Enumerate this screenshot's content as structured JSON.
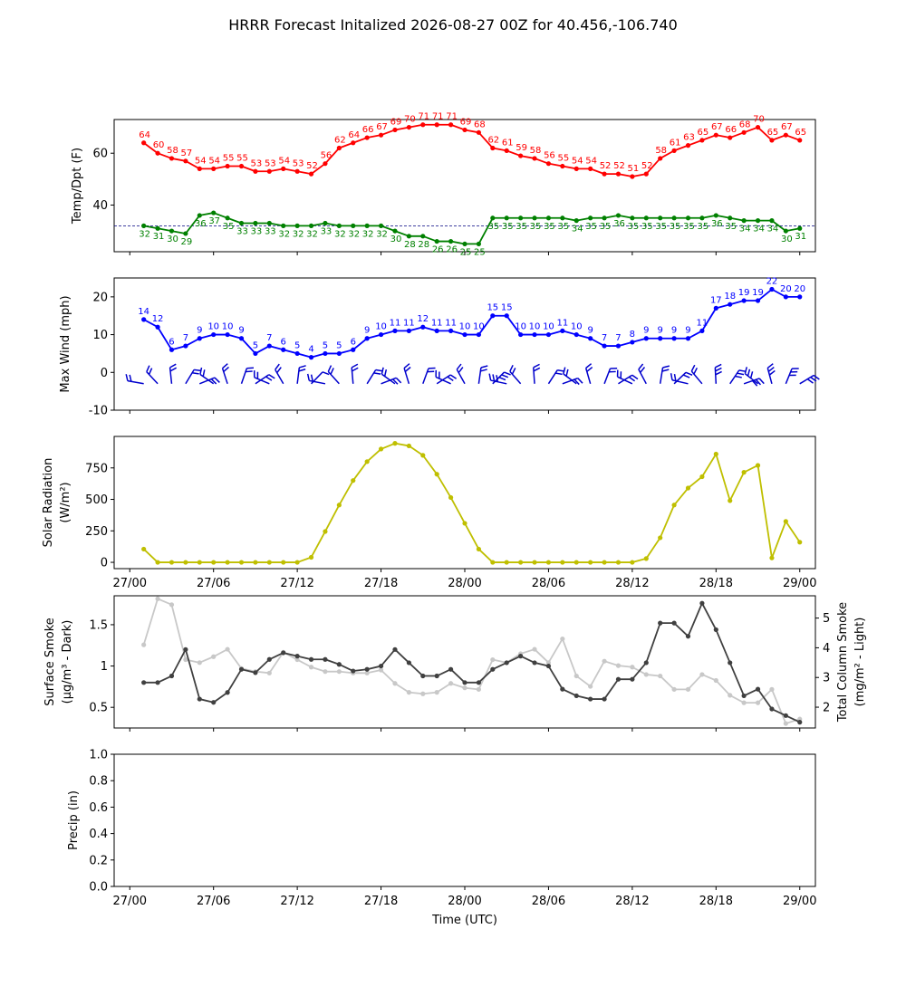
{
  "figure": {
    "title": "HRRR Forecast Initalized 2026-08-27 00Z for 40.456,-106.740",
    "xlabel": "Time (UTC)",
    "xticks": [
      {
        "hour": 0,
        "label": "27/00"
      },
      {
        "hour": 6,
        "label": "27/06"
      },
      {
        "hour": 12,
        "label": "27/12"
      },
      {
        "hour": 18,
        "label": "27/18"
      },
      {
        "hour": 24,
        "label": "28/00"
      },
      {
        "hour": 30,
        "label": "28/06"
      },
      {
        "hour": 36,
        "label": "28/12"
      },
      {
        "hour": 42,
        "label": "28/18"
      },
      {
        "hour": 48,
        "label": "29/00"
      }
    ]
  },
  "chart_data": [
    {
      "type": "line",
      "panel": "temperature",
      "ylabel": "Temp/Dpt (F)",
      "ylim": [
        22,
        73
      ],
      "yticks": [
        40,
        60
      ],
      "hours_from_2026-08-27_00Z": [
        1,
        2,
        3,
        4,
        5,
        6,
        7,
        8,
        9,
        10,
        11,
        12,
        13,
        14,
        15,
        16,
        17,
        18,
        19,
        20,
        21,
        22,
        23,
        24,
        25,
        26,
        27,
        28,
        29,
        30,
        31,
        32,
        33,
        34,
        35,
        36,
        37,
        38,
        39,
        40,
        41,
        42,
        43,
        44,
        45,
        46,
        47,
        48
      ],
      "series": [
        {
          "color": "#ff0000",
          "values": [
            64,
            60,
            58,
            57,
            54,
            54,
            55,
            55,
            53,
            53,
            54,
            53,
            52,
            56,
            62,
            64,
            66,
            67,
            69,
            70,
            71,
            71,
            71,
            69,
            68,
            62,
            61,
            59,
            58,
            56,
            55,
            54,
            54,
            52,
            52,
            51,
            52,
            58,
            61,
            63,
            65,
            67,
            66,
            68,
            70,
            65,
            67,
            65
          ]
        },
        {
          "color": "#008000",
          "values": [
            32,
            31,
            30,
            29,
            36,
            37,
            35,
            33,
            33,
            33,
            32,
            32,
            32,
            33,
            32,
            32,
            32,
            32,
            30,
            28,
            28,
            26,
            26,
            25,
            25,
            35,
            35,
            35,
            35,
            35,
            35,
            34,
            35,
            35,
            36,
            35,
            35,
            35,
            35,
            35,
            35,
            36,
            35,
            34,
            34,
            34,
            30,
            31
          ]
        }
      ],
      "reference_line": {
        "value": 32,
        "style": "dashed",
        "color": "#000080"
      }
    },
    {
      "type": "line",
      "panel": "wind",
      "ylabel": "Max Wind (mph)",
      "ylim": [
        -10,
        25
      ],
      "yticks": [
        -10,
        0,
        10,
        20
      ],
      "series": [
        {
          "color": "#0000ff",
          "values": [
            14,
            12,
            6,
            7,
            9,
            10,
            10,
            9,
            5,
            7,
            6,
            5,
            4,
            5,
            5,
            6,
            9,
            10,
            11,
            11,
            12,
            11,
            11,
            10,
            10,
            15,
            15,
            10,
            10,
            10,
            11,
            10,
            9,
            7,
            7,
            8,
            9,
            9,
            9,
            9,
            11,
            17,
            18,
            19,
            19,
            22,
            20,
            20
          ]
        }
      ],
      "wind_barbs": {
        "y": -3,
        "color": "#0000cd"
      }
    },
    {
      "type": "line",
      "panel": "solar",
      "ylabel": "Solar Radiation (W/m²)",
      "ylim": [
        -50,
        1000
      ],
      "yticks": [
        0,
        250,
        500,
        750
      ],
      "series": [
        {
          "color": "#bfbf00",
          "values": [
            105,
            0,
            0,
            0,
            0,
            0,
            0,
            0,
            0,
            0,
            0,
            0,
            40,
            245,
            455,
            650,
            800,
            900,
            945,
            925,
            850,
            700,
            515,
            310,
            105,
            0,
            0,
            0,
            0,
            0,
            0,
            0,
            0,
            0,
            0,
            0,
            30,
            195,
            455,
            590,
            680,
            860,
            490,
            715,
            770,
            35,
            325,
            160
          ]
        }
      ]
    },
    {
      "type": "line",
      "panel": "smoke",
      "ylabel": "Surface Smoke (μg/m³ - Dark)",
      "ylabel_right": "Total Column Smoke (mg/m² - Light)",
      "ylim": [
        0.25,
        1.85
      ],
      "yticks": [
        0.5,
        1.0,
        1.5
      ],
      "ylim_right": [
        1.3,
        5.75
      ],
      "yticks_right": [
        2,
        3,
        4,
        5
      ],
      "series": [
        {
          "axis": "left",
          "color": "#404040",
          "values": [
            0.8,
            0.8,
            0.88,
            1.2,
            0.6,
            0.56,
            0.68,
            0.96,
            0.92,
            1.08,
            1.16,
            1.12,
            1.08,
            1.08,
            1.02,
            0.94,
            0.96,
            1.0,
            1.2,
            1.04,
            0.88,
            0.88,
            0.96,
            0.8,
            0.8,
            0.96,
            1.04,
            1.12,
            1.04,
            1.0,
            0.72,
            0.64,
            0.6,
            0.6,
            0.84,
            0.84,
            1.04,
            1.52,
            1.52,
            1.36,
            1.76,
            1.44,
            1.04,
            0.64,
            0.72,
            0.48,
            0.4,
            0.32
          ]
        },
        {
          "axis": "right",
          "color": "#c8c8c8",
          "values": [
            4.1,
            5.65,
            5.45,
            3.6,
            3.5,
            3.7,
            3.95,
            3.3,
            3.2,
            3.15,
            3.85,
            3.6,
            3.35,
            3.2,
            3.2,
            3.15,
            3.15,
            3.25,
            2.8,
            2.5,
            2.45,
            2.5,
            2.8,
            2.65,
            2.6,
            3.6,
            3.5,
            3.8,
            3.95,
            3.5,
            4.3,
            3.05,
            2.7,
            3.55,
            3.4,
            3.35,
            3.1,
            3.05,
            2.6,
            2.6,
            3.1,
            2.9,
            2.4,
            2.15,
            2.15,
            2.6,
            1.45,
            1.6
          ]
        }
      ]
    },
    {
      "type": "line",
      "panel": "precip",
      "ylabel": "Precip (in)",
      "ylim": [
        0,
        1
      ],
      "yticks": [
        0.0,
        0.2,
        0.4,
        0.6,
        0.8,
        1.0
      ],
      "series": []
    }
  ]
}
